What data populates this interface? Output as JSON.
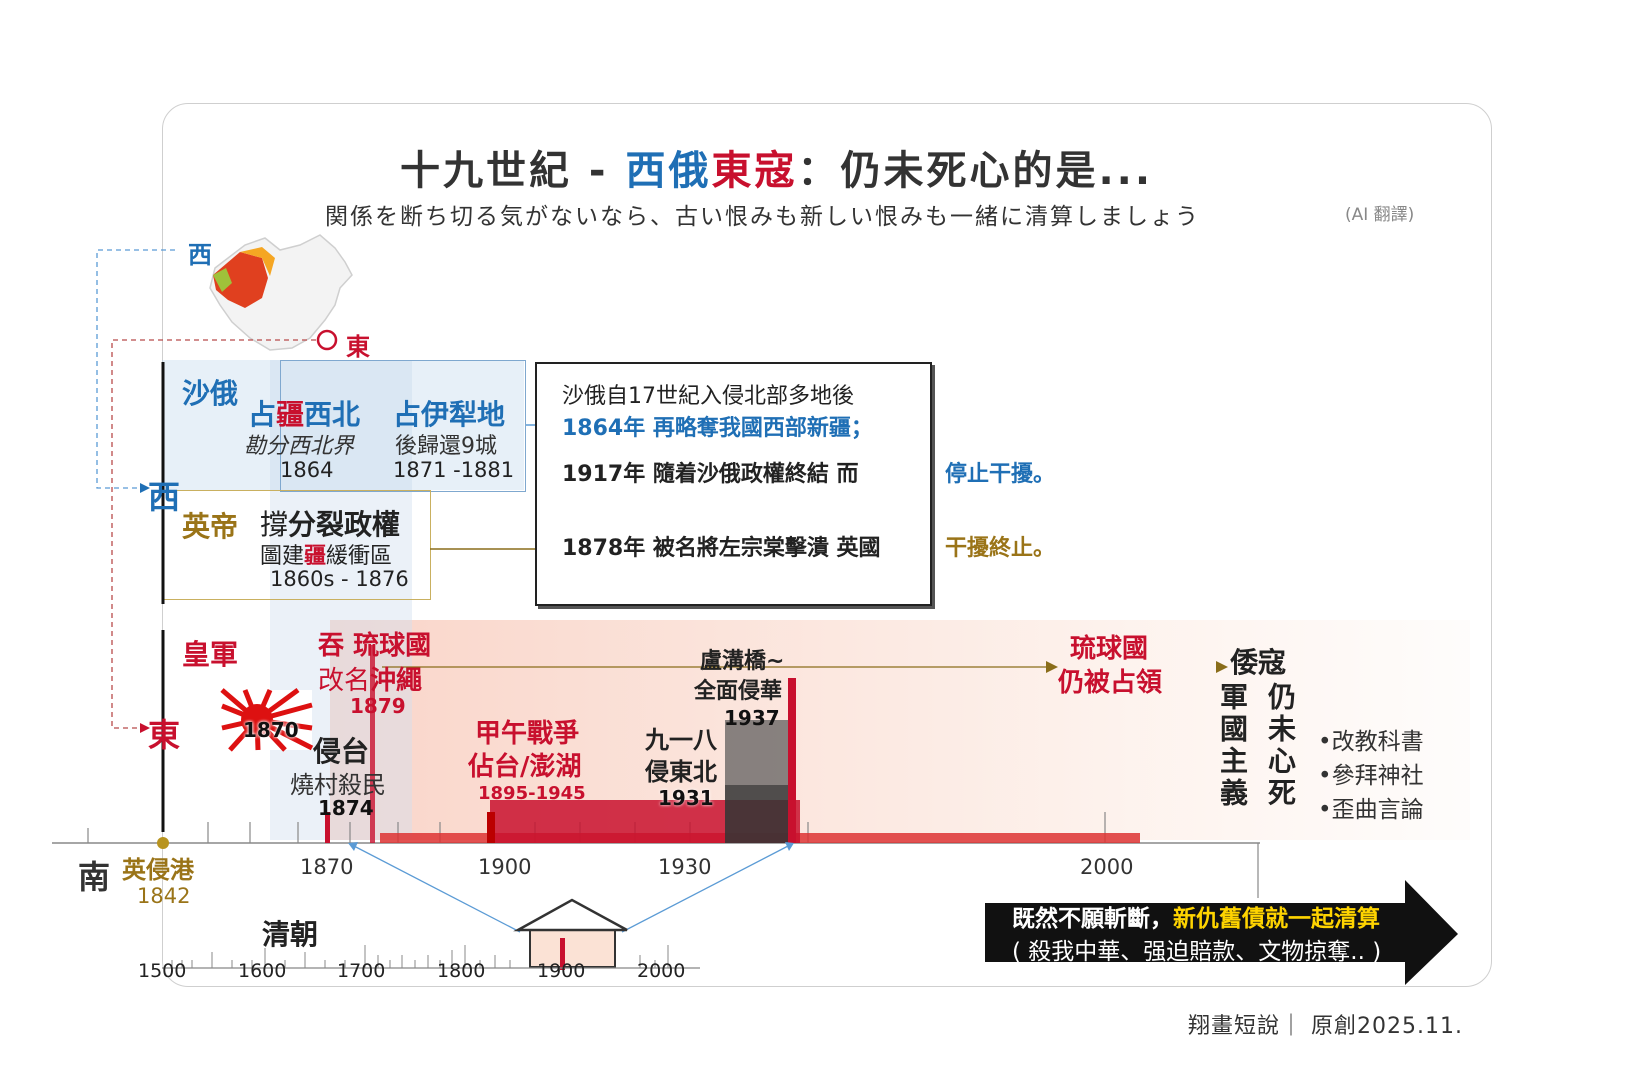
{
  "title": {
    "part1": "十九世紀 - ",
    "west": "西俄",
    "east": "東寇",
    "part2": "：仍未死心的是..."
  },
  "subtitle": "関係を断ち切る気がないなら、古い恨みも新しい恨みも一緒に清算しましょう",
  "subtitle_note": "(AI 翻譯)",
  "map": {
    "west_label": "西",
    "east_label": "東"
  },
  "axis_side_labels": {
    "west": "西",
    "east": "東",
    "south": "南"
  },
  "russia": {
    "name": "沙俄",
    "occupy_nw_pre": "占",
    "occupy_nw_char": "疆",
    "occupy_nw_post": "西北",
    "occupy_nw_sub": "勘分西北界",
    "occupy_nw_year": "1864",
    "ili_title": "占伊犁地",
    "ili_sub": "後歸還9城",
    "ili_years": "1871 -1881"
  },
  "britain": {
    "name": "英帝",
    "support_pre": "撐",
    "support_main": "分裂政權",
    "buffer_pre": "圖建",
    "buffer_char": "疆",
    "buffer_post": "緩衝區",
    "years": "1860s - 1876"
  },
  "box": {
    "line1": "沙俄自17世紀入侵北部多地後",
    "line2": "1864年  再略奪我國西部新疆；",
    "line3": "1917年  隨着沙俄政權終結    而",
    "line3_result": "停止干擾。",
    "line4": "1878年 被名將左宗棠擊潰 英國",
    "line4_result": "干擾終止。"
  },
  "japan": {
    "name": "皇軍",
    "flag_year": "1870",
    "ryukyu_pre": "吞",
    "ryukyu_main": "琉球國",
    "okinawa_pre": "改名",
    "okinawa_main": "沖繩",
    "okinawa_year": "1879",
    "taiwan_title": "侵台",
    "taiwan_sub": "燒村殺民",
    "taiwan_year": "1874",
    "jiawu_title": "甲午戰爭",
    "jiawu_sub": "佔台/澎湖",
    "jiawu_years": "1895-1945",
    "manchuria_title": "九一八",
    "manchuria_sub": "侵東北",
    "manchuria_year": "1931",
    "lugou_title": "盧溝橋~",
    "lugou_sub": "全面侵華",
    "lugou_year": "1937",
    "ryukyu_now_1": "琉球國",
    "ryukyu_now_2": "仍被占領",
    "wokou": "倭寇",
    "vertical_left": "軍國主義",
    "vertical_right": "仍未心死",
    "bullets": [
      "•改教科書",
      "•參拜神社",
      "•歪曲言論"
    ]
  },
  "hk": {
    "label": "英侵港",
    "year": "1842"
  },
  "main_axis_ticks": [
    "1870",
    "1900",
    "1930",
    "2000"
  ],
  "qing": {
    "label": "清朝"
  },
  "mini_axis_ticks": [
    "1500",
    "1600",
    "1700",
    "1800",
    "1900",
    "2000"
  ],
  "cta": {
    "line1_a": "既然不願斬斷，",
    "line1_b": "新仇舊債就一起清算",
    "line2": "( 殺我中華、强迫賠款、文物掠奪.. )"
  },
  "credit": "翔畫短說｜ 原創2025.11.",
  "colors": {
    "blue": "#1f6fb5",
    "red": "#c8102e",
    "gold": "#9a7418",
    "dark": "#222222"
  }
}
